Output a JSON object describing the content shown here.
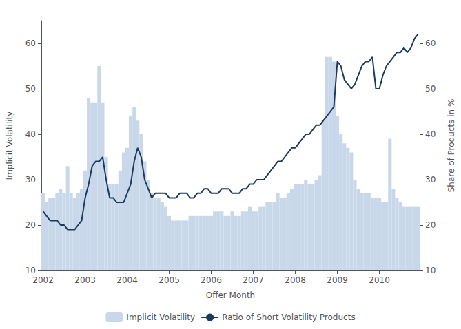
{
  "chart_data": {
    "type": "bar",
    "xlabel": "Offer Month",
    "ylabel": "Implicit Volatility",
    "y2label": "Share of Products in %",
    "categories": [
      "2002",
      null,
      null,
      null,
      null,
      null,
      null,
      null,
      null,
      null,
      null,
      null,
      "2003",
      null,
      null,
      null,
      null,
      null,
      null,
      null,
      null,
      null,
      null,
      null,
      "2004",
      null,
      null,
      null,
      null,
      null,
      null,
      null,
      null,
      null,
      null,
      null,
      "2005",
      null,
      null,
      null,
      null,
      null,
      null,
      null,
      null,
      null,
      null,
      null,
      "2006",
      null,
      null,
      null,
      null,
      null,
      null,
      null,
      null,
      null,
      null,
      null,
      "2007",
      null,
      null,
      null,
      null,
      null,
      null,
      null,
      null,
      null,
      null,
      null,
      "2008",
      null,
      null,
      null,
      null,
      null,
      null,
      null,
      null,
      null,
      null,
      null,
      "2009",
      null,
      null,
      null,
      null,
      null,
      null,
      null,
      null,
      null,
      null,
      null,
      "2010",
      null,
      null,
      null,
      null,
      null,
      null,
      null,
      null,
      null,
      null,
      null
    ],
    "series": [
      {
        "name": "Implicit Volatility",
        "type": "bar",
        "color": "#c8d8ea",
        "values": [
          27,
          25,
          26,
          26,
          27,
          28,
          27,
          33,
          27,
          26,
          27,
          28,
          32,
          48,
          47,
          47,
          55,
          47,
          35,
          29,
          29,
          29,
          32,
          36,
          37,
          44,
          46,
          43,
          40,
          34,
          30,
          27,
          26,
          26,
          25,
          24,
          22,
          21,
          21,
          21,
          21,
          21,
          22,
          22,
          22,
          22,
          22,
          22,
          22,
          23,
          23,
          23,
          22,
          22,
          23,
          22,
          22,
          23,
          23,
          24,
          23,
          23,
          24,
          24,
          25,
          25,
          25,
          27,
          26,
          26,
          27,
          28,
          29,
          29,
          29,
          30,
          29,
          29,
          30,
          31,
          43,
          57,
          57,
          56,
          44,
          40,
          38,
          37,
          36,
          30,
          28,
          27,
          27,
          27,
          26,
          26,
          26,
          25,
          25,
          39,
          28,
          26,
          25,
          24,
          24,
          24,
          24,
          24
        ]
      },
      {
        "name": "Ratio of Short Volatility Products",
        "type": "line",
        "color": "#1b3a5c",
        "axis": "y2",
        "values": [
          23,
          22,
          21,
          21,
          21,
          20,
          20,
          19,
          19,
          19,
          20,
          21,
          26,
          29,
          33,
          34,
          34,
          35,
          30,
          26,
          26,
          25,
          25,
          25,
          27,
          29,
          34,
          37,
          35,
          30,
          28,
          26,
          27,
          27,
          27,
          27,
          26,
          26,
          26,
          27,
          27,
          27,
          26,
          26,
          27,
          27,
          28,
          28,
          27,
          27,
          27,
          28,
          28,
          28,
          27,
          27,
          27,
          28,
          28,
          29,
          29,
          30,
          30,
          30,
          31,
          32,
          33,
          34,
          34,
          35,
          36,
          37,
          37,
          38,
          39,
          40,
          40,
          41,
          42,
          42,
          43,
          44,
          45,
          46,
          56,
          55,
          52,
          51,
          50,
          51,
          53,
          55,
          56,
          56,
          57,
          50,
          50,
          53,
          55,
          56,
          57,
          58,
          58,
          59,
          58,
          59,
          61,
          62
        ]
      }
    ],
    "ylim": [
      10,
      65
    ],
    "yticks": [
      10,
      20,
      30,
      40,
      50,
      60
    ],
    "y2lim": [
      10,
      65
    ],
    "y2ticks": [
      10,
      20,
      30,
      40,
      50,
      60
    ],
    "grid": false,
    "legend": "bottom"
  }
}
